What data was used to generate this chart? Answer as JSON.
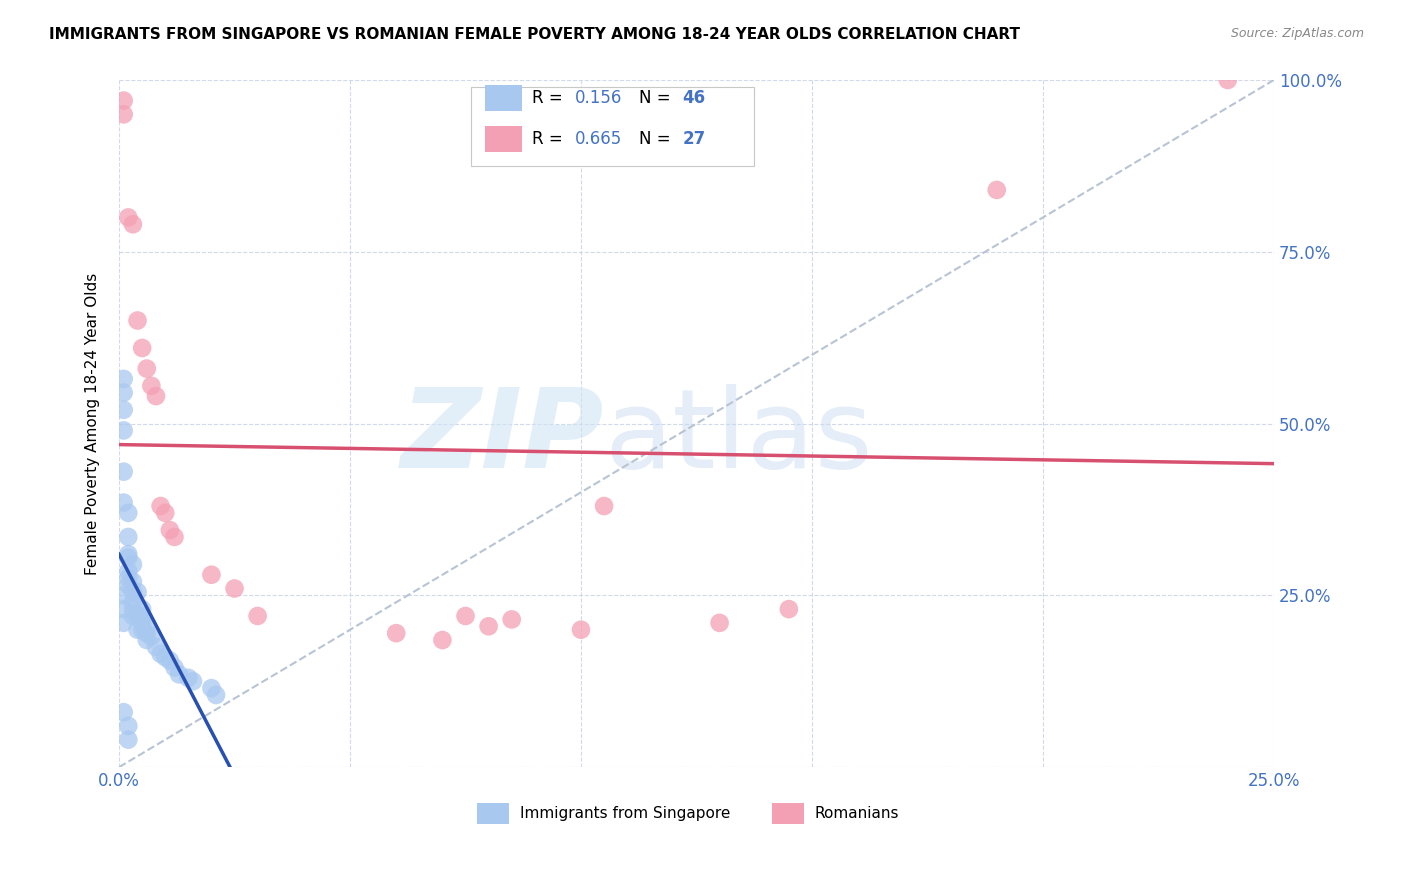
{
  "title": "IMMIGRANTS FROM SINGAPORE VS ROMANIAN FEMALE POVERTY AMONG 18-24 YEAR OLDS CORRELATION CHART",
  "source": "Source: ZipAtlas.com",
  "ylabel": "Female Poverty Among 18-24 Year Olds",
  "xlim": [
    0.0,
    0.25
  ],
  "ylim": [
    0.0,
    1.0
  ],
  "xticks": [
    0.0,
    0.05,
    0.1,
    0.15,
    0.2,
    0.25
  ],
  "yticks": [
    0.0,
    0.25,
    0.5,
    0.75,
    1.0
  ],
  "xtick_labels": [
    "0.0%",
    "",
    "",
    "",
    "",
    "25.0%"
  ],
  "ytick_labels": [
    "",
    "25.0%",
    "50.0%",
    "75.0%",
    "100.0%"
  ],
  "singapore_r": "0.156",
  "singapore_n": "46",
  "romanian_r": "0.665",
  "romanian_n": "27",
  "singapore_color": "#a8c8f0",
  "romanian_color": "#f4a0b4",
  "singapore_line_color": "#2850b0",
  "romanian_line_color": "#d85070",
  "ref_line_color": "#b8c4d4",
  "tick_color": "#4472c4",
  "singapore_x": [
    0.001,
    0.001,
    0.001,
    0.001,
    0.001,
    0.001,
    0.002,
    0.002,
    0.002,
    0.002,
    0.002,
    0.002,
    0.003,
    0.003,
    0.003,
    0.003,
    0.003,
    0.004,
    0.004,
    0.004,
    0.005,
    0.005,
    0.005,
    0.005,
    0.006,
    0.006,
    0.006,
    0.007,
    0.008,
    0.009,
    0.01,
    0.011,
    0.012,
    0.013,
    0.015,
    0.016,
    0.02,
    0.021,
    0.001,
    0.001,
    0.001,
    0.002,
    0.003,
    0.001,
    0.002,
    0.002
  ],
  "singapore_y": [
    0.565,
    0.545,
    0.52,
    0.49,
    0.43,
    0.385,
    0.37,
    0.335,
    0.305,
    0.285,
    0.275,
    0.265,
    0.27,
    0.255,
    0.24,
    0.23,
    0.22,
    0.255,
    0.22,
    0.2,
    0.23,
    0.22,
    0.21,
    0.2,
    0.205,
    0.195,
    0.185,
    0.19,
    0.175,
    0.165,
    0.16,
    0.155,
    0.145,
    0.135,
    0.13,
    0.125,
    0.115,
    0.105,
    0.25,
    0.23,
    0.21,
    0.31,
    0.295,
    0.08,
    0.06,
    0.04
  ],
  "romanian_x": [
    0.001,
    0.001,
    0.002,
    0.003,
    0.004,
    0.005,
    0.006,
    0.007,
    0.008,
    0.009,
    0.01,
    0.011,
    0.012,
    0.02,
    0.025,
    0.03,
    0.06,
    0.07,
    0.075,
    0.08,
    0.085,
    0.1,
    0.105,
    0.13,
    0.145,
    0.19,
    0.24
  ],
  "romanian_y": [
    0.97,
    0.95,
    0.8,
    0.79,
    0.65,
    0.61,
    0.58,
    0.555,
    0.54,
    0.38,
    0.37,
    0.345,
    0.335,
    0.28,
    0.26,
    0.22,
    0.195,
    0.185,
    0.22,
    0.205,
    0.215,
    0.2,
    0.38,
    0.21,
    0.23,
    0.84,
    1.0
  ]
}
